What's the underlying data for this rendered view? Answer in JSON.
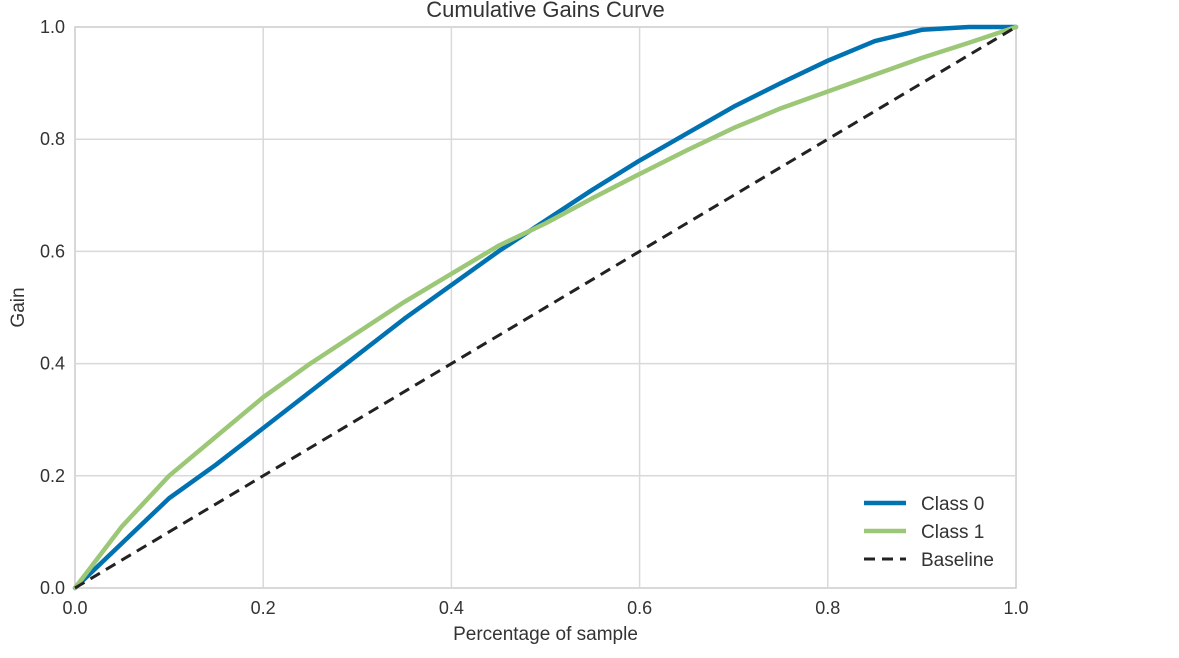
{
  "chart_data": {
    "type": "line",
    "title": "Cumulative Gains Curve",
    "xlabel": "Percentage of sample",
    "ylabel": "Gain",
    "xlim": [
      0.0,
      1.0
    ],
    "ylim": [
      0.0,
      1.0
    ],
    "xticks": [
      "0.0",
      "0.2",
      "0.4",
      "0.6",
      "0.8",
      "1.0"
    ],
    "yticks": [
      "0.0",
      "0.2",
      "0.4",
      "0.6",
      "0.8",
      "1.0"
    ],
    "grid": true,
    "legend_position": "lower-right",
    "series": [
      {
        "name": "Class 0",
        "color": "#0072b2",
        "style": "solid",
        "x": [
          0.0,
          0.05,
          0.1,
          0.15,
          0.2,
          0.25,
          0.3,
          0.35,
          0.4,
          0.45,
          0.5,
          0.55,
          0.6,
          0.65,
          0.7,
          0.75,
          0.8,
          0.85,
          0.9,
          0.95,
          1.0
        ],
        "y": [
          0.0,
          0.08,
          0.16,
          0.22,
          0.285,
          0.35,
          0.415,
          0.48,
          0.54,
          0.6,
          0.655,
          0.71,
          0.762,
          0.81,
          0.858,
          0.9,
          0.94,
          0.975,
          0.995,
          1.0,
          1.0
        ]
      },
      {
        "name": "Class 1",
        "color": "#9bc776",
        "style": "solid",
        "x": [
          0.0,
          0.05,
          0.1,
          0.15,
          0.2,
          0.25,
          0.3,
          0.35,
          0.4,
          0.45,
          0.5,
          0.55,
          0.6,
          0.65,
          0.7,
          0.75,
          0.8,
          0.85,
          0.9,
          0.95,
          1.0
        ],
        "y": [
          0.0,
          0.11,
          0.2,
          0.27,
          0.34,
          0.4,
          0.455,
          0.51,
          0.56,
          0.61,
          0.65,
          0.695,
          0.738,
          0.78,
          0.82,
          0.855,
          0.885,
          0.915,
          0.945,
          0.972,
          1.0
        ]
      },
      {
        "name": "Baseline",
        "color": "#222222",
        "style": "dashed",
        "x": [
          0.0,
          1.0
        ],
        "y": [
          0.0,
          1.0
        ]
      }
    ]
  }
}
